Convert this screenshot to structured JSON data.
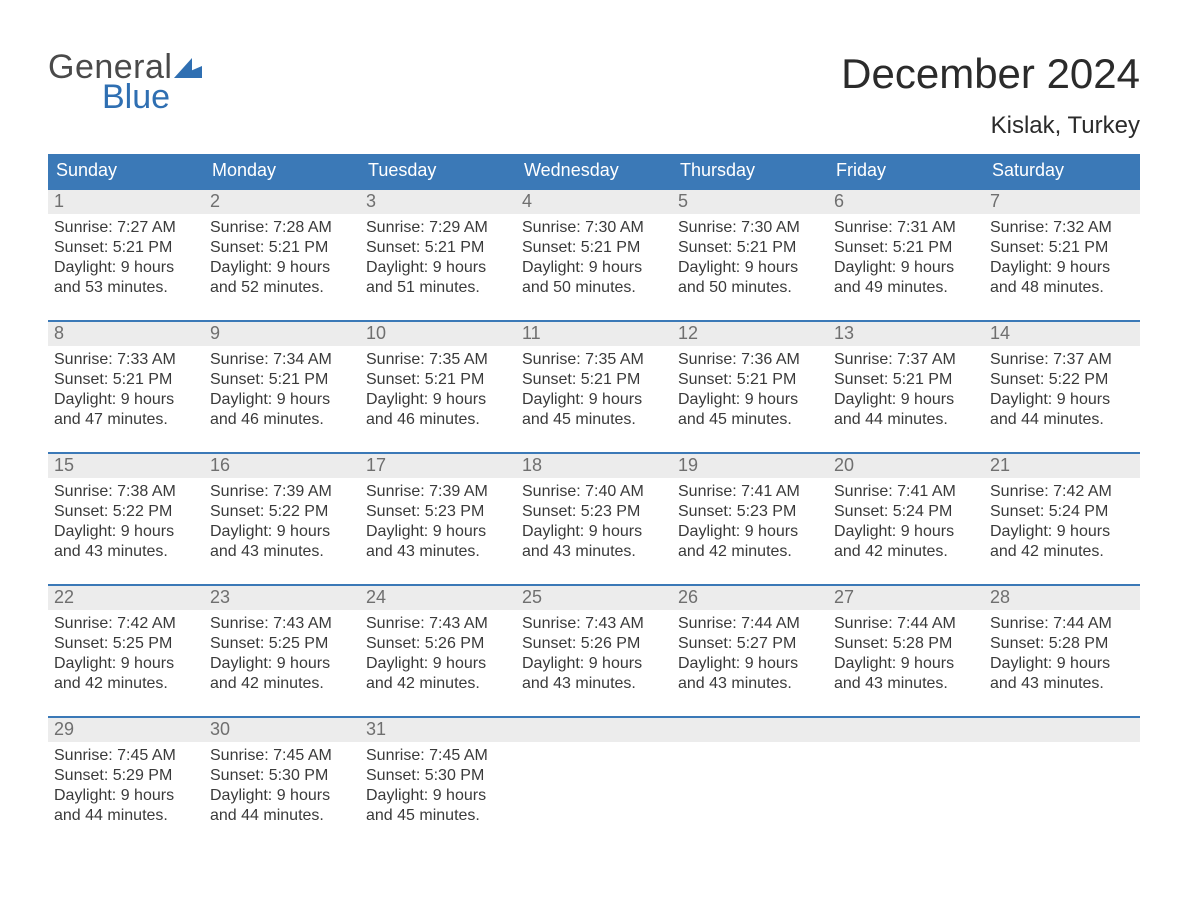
{
  "logo": {
    "text1": "General",
    "text2": "Blue"
  },
  "title": "December 2024",
  "location": "Kislak, Turkey",
  "colors": {
    "header_bg": "#3b79b7",
    "header_text": "#ffffff",
    "daynum_bg": "#ececec",
    "daynum_text": "#6f6f6f",
    "body_text": "#3a3a3a",
    "logo_blue": "#2f6fb2",
    "logo_gray": "#4a4a4a",
    "page_bg": "#ffffff"
  },
  "weekdays": [
    "Sunday",
    "Monday",
    "Tuesday",
    "Wednesday",
    "Thursday",
    "Friday",
    "Saturday"
  ],
  "weeks": [
    [
      {
        "n": "1",
        "sr": "Sunrise: 7:27 AM",
        "ss": "Sunset: 5:21 PM",
        "d1": "Daylight: 9 hours",
        "d2": "and 53 minutes."
      },
      {
        "n": "2",
        "sr": "Sunrise: 7:28 AM",
        "ss": "Sunset: 5:21 PM",
        "d1": "Daylight: 9 hours",
        "d2": "and 52 minutes."
      },
      {
        "n": "3",
        "sr": "Sunrise: 7:29 AM",
        "ss": "Sunset: 5:21 PM",
        "d1": "Daylight: 9 hours",
        "d2": "and 51 minutes."
      },
      {
        "n": "4",
        "sr": "Sunrise: 7:30 AM",
        "ss": "Sunset: 5:21 PM",
        "d1": "Daylight: 9 hours",
        "d2": "and 50 minutes."
      },
      {
        "n": "5",
        "sr": "Sunrise: 7:30 AM",
        "ss": "Sunset: 5:21 PM",
        "d1": "Daylight: 9 hours",
        "d2": "and 50 minutes."
      },
      {
        "n": "6",
        "sr": "Sunrise: 7:31 AM",
        "ss": "Sunset: 5:21 PM",
        "d1": "Daylight: 9 hours",
        "d2": "and 49 minutes."
      },
      {
        "n": "7",
        "sr": "Sunrise: 7:32 AM",
        "ss": "Sunset: 5:21 PM",
        "d1": "Daylight: 9 hours",
        "d2": "and 48 minutes."
      }
    ],
    [
      {
        "n": "8",
        "sr": "Sunrise: 7:33 AM",
        "ss": "Sunset: 5:21 PM",
        "d1": "Daylight: 9 hours",
        "d2": "and 47 minutes."
      },
      {
        "n": "9",
        "sr": "Sunrise: 7:34 AM",
        "ss": "Sunset: 5:21 PM",
        "d1": "Daylight: 9 hours",
        "d2": "and 46 minutes."
      },
      {
        "n": "10",
        "sr": "Sunrise: 7:35 AM",
        "ss": "Sunset: 5:21 PM",
        "d1": "Daylight: 9 hours",
        "d2": "and 46 minutes."
      },
      {
        "n": "11",
        "sr": "Sunrise: 7:35 AM",
        "ss": "Sunset: 5:21 PM",
        "d1": "Daylight: 9 hours",
        "d2": "and 45 minutes."
      },
      {
        "n": "12",
        "sr": "Sunrise: 7:36 AM",
        "ss": "Sunset: 5:21 PM",
        "d1": "Daylight: 9 hours",
        "d2": "and 45 minutes."
      },
      {
        "n": "13",
        "sr": "Sunrise: 7:37 AM",
        "ss": "Sunset: 5:21 PM",
        "d1": "Daylight: 9 hours",
        "d2": "and 44 minutes."
      },
      {
        "n": "14",
        "sr": "Sunrise: 7:37 AM",
        "ss": "Sunset: 5:22 PM",
        "d1": "Daylight: 9 hours",
        "d2": "and 44 minutes."
      }
    ],
    [
      {
        "n": "15",
        "sr": "Sunrise: 7:38 AM",
        "ss": "Sunset: 5:22 PM",
        "d1": "Daylight: 9 hours",
        "d2": "and 43 minutes."
      },
      {
        "n": "16",
        "sr": "Sunrise: 7:39 AM",
        "ss": "Sunset: 5:22 PM",
        "d1": "Daylight: 9 hours",
        "d2": "and 43 minutes."
      },
      {
        "n": "17",
        "sr": "Sunrise: 7:39 AM",
        "ss": "Sunset: 5:23 PM",
        "d1": "Daylight: 9 hours",
        "d2": "and 43 minutes."
      },
      {
        "n": "18",
        "sr": "Sunrise: 7:40 AM",
        "ss": "Sunset: 5:23 PM",
        "d1": "Daylight: 9 hours",
        "d2": "and 43 minutes."
      },
      {
        "n": "19",
        "sr": "Sunrise: 7:41 AM",
        "ss": "Sunset: 5:23 PM",
        "d1": "Daylight: 9 hours",
        "d2": "and 42 minutes."
      },
      {
        "n": "20",
        "sr": "Sunrise: 7:41 AM",
        "ss": "Sunset: 5:24 PM",
        "d1": "Daylight: 9 hours",
        "d2": "and 42 minutes."
      },
      {
        "n": "21",
        "sr": "Sunrise: 7:42 AM",
        "ss": "Sunset: 5:24 PM",
        "d1": "Daylight: 9 hours",
        "d2": "and 42 minutes."
      }
    ],
    [
      {
        "n": "22",
        "sr": "Sunrise: 7:42 AM",
        "ss": "Sunset: 5:25 PM",
        "d1": "Daylight: 9 hours",
        "d2": "and 42 minutes."
      },
      {
        "n": "23",
        "sr": "Sunrise: 7:43 AM",
        "ss": "Sunset: 5:25 PM",
        "d1": "Daylight: 9 hours",
        "d2": "and 42 minutes."
      },
      {
        "n": "24",
        "sr": "Sunrise: 7:43 AM",
        "ss": "Sunset: 5:26 PM",
        "d1": "Daylight: 9 hours",
        "d2": "and 42 minutes."
      },
      {
        "n": "25",
        "sr": "Sunrise: 7:43 AM",
        "ss": "Sunset: 5:26 PM",
        "d1": "Daylight: 9 hours",
        "d2": "and 43 minutes."
      },
      {
        "n": "26",
        "sr": "Sunrise: 7:44 AM",
        "ss": "Sunset: 5:27 PM",
        "d1": "Daylight: 9 hours",
        "d2": "and 43 minutes."
      },
      {
        "n": "27",
        "sr": "Sunrise: 7:44 AM",
        "ss": "Sunset: 5:28 PM",
        "d1": "Daylight: 9 hours",
        "d2": "and 43 minutes."
      },
      {
        "n": "28",
        "sr": "Sunrise: 7:44 AM",
        "ss": "Sunset: 5:28 PM",
        "d1": "Daylight: 9 hours",
        "d2": "and 43 minutes."
      }
    ],
    [
      {
        "n": "29",
        "sr": "Sunrise: 7:45 AM",
        "ss": "Sunset: 5:29 PM",
        "d1": "Daylight: 9 hours",
        "d2": "and 44 minutes."
      },
      {
        "n": "30",
        "sr": "Sunrise: 7:45 AM",
        "ss": "Sunset: 5:30 PM",
        "d1": "Daylight: 9 hours",
        "d2": "and 44 minutes."
      },
      {
        "n": "31",
        "sr": "Sunrise: 7:45 AM",
        "ss": "Sunset: 5:30 PM",
        "d1": "Daylight: 9 hours",
        "d2": "and 45 minutes."
      },
      null,
      null,
      null,
      null
    ]
  ]
}
